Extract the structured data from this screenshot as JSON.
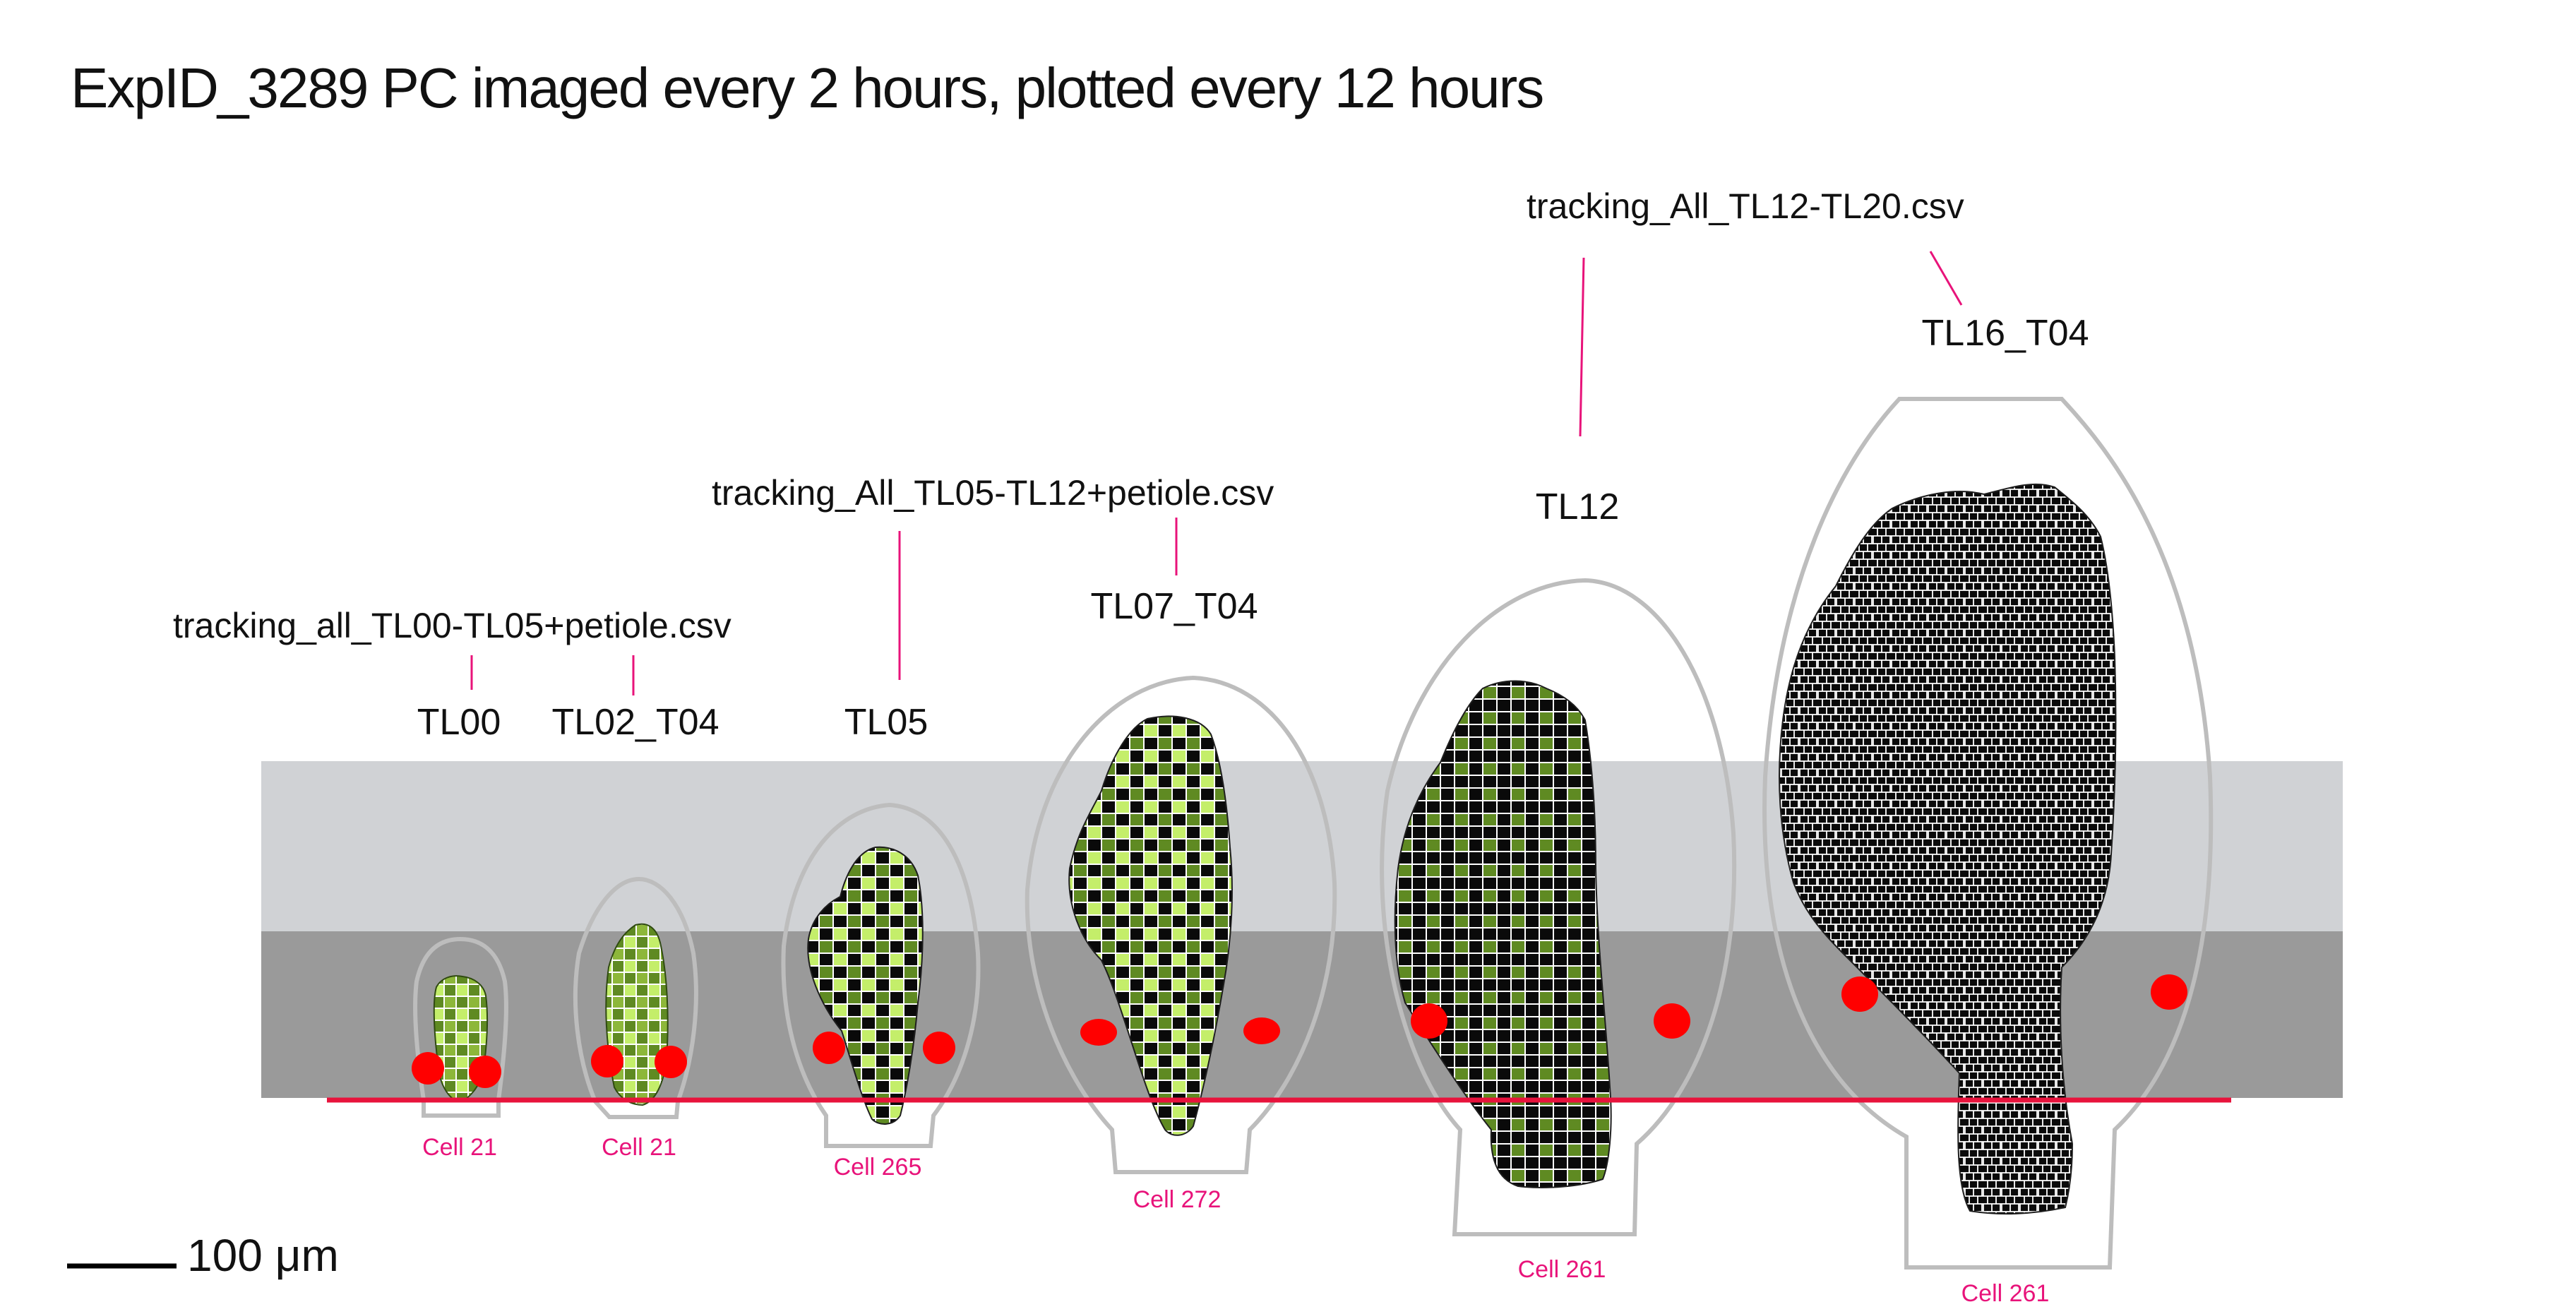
{
  "title": "ExpID_3289 PC imaged every 2 hours, plotted every 12 hours",
  "colors": {
    "band_light": "#d0d2d5",
    "band_dark": "#9a9a9a",
    "baseline": "#e8133c",
    "marker": "#ff0000",
    "cell_label": "#e8137a",
    "cell_black": "#0a0a0a",
    "cell_olive": "#5f8a22",
    "cell_lime": "#c4ee6a",
    "outline": "#bdbdbd"
  },
  "file_labels": [
    "tracking_all_TL00-TL05+petiole.csv",
    "tracking_All_TL05-TL12+petiole.csv",
    "tracking_All_TL12-TL20.csv"
  ],
  "stages": [
    {
      "label": "TL00",
      "cell_label": "Cell 21",
      "icon": "green-leaf-icon"
    },
    {
      "label": "TL02_T04",
      "cell_label": "Cell 21",
      "icon": "green-leaf-icon"
    },
    {
      "label": "TL05",
      "cell_label": "Cell 265",
      "icon": "mixed-leaf-icon"
    },
    {
      "label": "TL07_T04",
      "cell_label": "Cell 272",
      "icon": "mixed-leaf-icon"
    },
    {
      "label": "TL12",
      "cell_label": "Cell 261",
      "icon": "mixed-leaf-icon"
    },
    {
      "label": "TL16_T04",
      "cell_label": "Cell 261",
      "icon": "black-leaf-icon"
    }
  ],
  "scale_bar": {
    "label": "100 μm"
  }
}
